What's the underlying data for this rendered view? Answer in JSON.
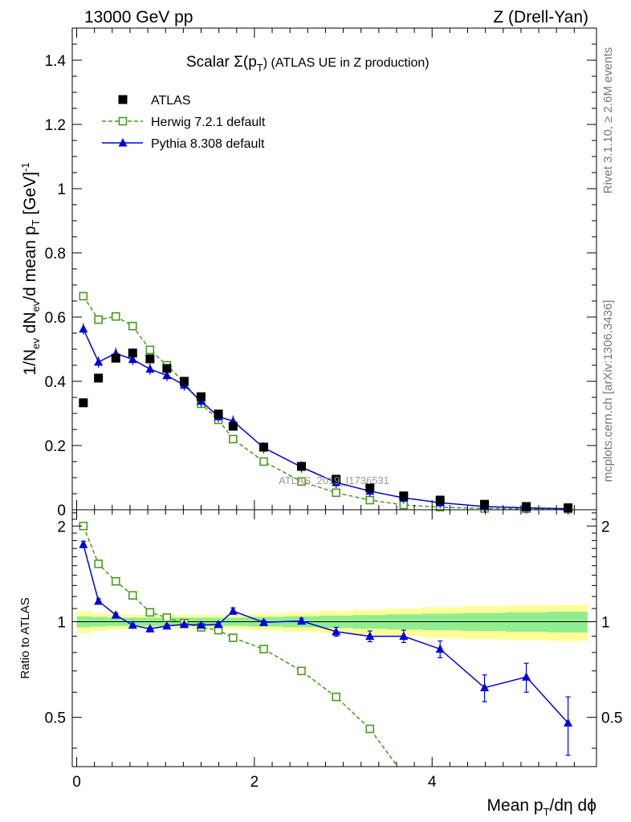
{
  "header": {
    "left": "13000 GeV pp",
    "right": "Z (Drell-Yan)"
  },
  "side_labels": {
    "rivet": "Rivet 3.1.10, ≥ 2.6M events",
    "mcplots": "mcplots.cern.ch [arXiv:1306.3436]"
  },
  "chart_data": [
    {
      "type": "line",
      "panel": "main",
      "title_main": "Scalar Σ(p",
      "title_sub": "T",
      "title_rest": ") (ATLAS UE in Z production)",
      "ylabel": "1/N_ev dN_ev/d mean p_T [GeV]^-1",
      "watermark": "ATLAS_2019_I1736531",
      "xlim": [
        -0.05,
        5.85
      ],
      "ylim": [
        0,
        1.5
      ],
      "yticks": [
        0,
        0.2,
        0.4,
        0.6,
        0.8,
        1,
        1.2,
        1.4
      ],
      "ytick_labels": [
        "0",
        "0.2",
        "0.4",
        "0.6",
        "0.8",
        "1",
        "1.2",
        "1.4"
      ],
      "legend_position": "top-left",
      "series": [
        {
          "name": "ATLAS",
          "style": "square-filled",
          "color": "#000000",
          "x": [
            0.075,
            0.245,
            0.44,
            0.63,
            0.825,
            1.015,
            1.21,
            1.4,
            1.595,
            1.76,
            2.105,
            2.53,
            2.92,
            3.3,
            3.68,
            4.09,
            4.59,
            5.06,
            5.53
          ],
          "y": [
            0.333,
            0.41,
            0.472,
            0.488,
            0.47,
            0.44,
            0.4,
            0.352,
            0.298,
            0.26,
            0.195,
            0.135,
            0.095,
            0.068,
            0.043,
            0.03,
            0.017,
            0.01,
            0.006
          ]
        },
        {
          "name": "Herwig 7.2.1 default",
          "style": "square-open-dashed",
          "color": "#4a9a1c",
          "x": [
            0.075,
            0.245,
            0.44,
            0.63,
            0.825,
            1.015,
            1.21,
            1.4,
            1.595,
            1.76,
            2.105,
            2.53,
            2.92,
            3.3,
            3.68,
            4.09,
            4.59,
            5.06,
            5.53
          ],
          "y": [
            0.665,
            0.592,
            0.602,
            0.572,
            0.498,
            0.45,
            0.397,
            0.33,
            0.28,
            0.22,
            0.15,
            0.088,
            0.053,
            0.03,
            0.015,
            0.008,
            0.004,
            0.003,
            0.002
          ]
        },
        {
          "name": "Pythia 8.308 default",
          "style": "triangle-filled-solid",
          "color": "#0000dd",
          "x": [
            0.075,
            0.245,
            0.44,
            0.63,
            0.825,
            1.015,
            1.21,
            1.4,
            1.595,
            1.76,
            2.105,
            2.53,
            2.92,
            3.3,
            3.68,
            4.09,
            4.59,
            5.06,
            5.53
          ],
          "y": [
            0.563,
            0.46,
            0.487,
            0.468,
            0.438,
            0.418,
            0.388,
            0.338,
            0.29,
            0.276,
            0.193,
            0.133,
            0.085,
            0.058,
            0.037,
            0.022,
            0.01,
            0.006,
            0.003
          ]
        }
      ]
    },
    {
      "type": "line",
      "panel": "ratio",
      "ylabel": "Ratio to ATLAS",
      "xlabel": "Mean p_T/dη dϕ",
      "xlim": [
        -0.05,
        5.85
      ],
      "ylim": [
        0.35,
        2.25
      ],
      "xticks": [
        0,
        2,
        4
      ],
      "xtick_labels": [
        "0",
        "2",
        "4"
      ],
      "yticks": [
        0.5,
        1,
        2
      ],
      "ytick_labels": [
        "0.5",
        "1",
        "2"
      ],
      "bands": {
        "inner_color": "#90ee90",
        "outer_color": "#ffff99",
        "x": [
          0.075,
          0.245,
          0.44,
          0.63,
          0.825,
          1.015,
          1.21,
          1.4,
          1.595,
          1.76,
          2.105,
          2.53,
          2.92,
          3.3,
          3.68,
          4.09,
          4.59,
          5.06,
          5.53
        ],
        "inner": [
          0.04,
          0.035,
          0.03,
          0.03,
          0.03,
          0.03,
          0.03,
          0.03,
          0.03,
          0.03,
          0.035,
          0.04,
          0.045,
          0.05,
          0.055,
          0.06,
          0.065,
          0.07,
          0.075
        ],
        "outer": [
          0.08,
          0.065,
          0.055,
          0.05,
          0.05,
          0.05,
          0.05,
          0.05,
          0.05,
          0.05,
          0.06,
          0.07,
          0.08,
          0.09,
          0.1,
          0.11,
          0.12,
          0.125,
          0.13
        ]
      },
      "series": [
        {
          "name": "Herwig 7.2.1 default",
          "style": "square-open-dashed",
          "color": "#4a9a1c",
          "x": [
            0.075,
            0.245,
            0.44,
            0.63,
            0.825,
            1.015,
            1.21,
            1.4,
            1.595,
            1.76,
            2.105,
            2.53,
            2.92,
            3.3,
            3.68
          ],
          "y": [
            2.0,
            1.52,
            1.34,
            1.21,
            1.07,
            1.03,
            0.99,
            0.96,
            0.94,
            0.89,
            0.82,
            0.7,
            0.58,
            0.46,
            0.33
          ]
        },
        {
          "name": "Pythia 8.308 default",
          "style": "triangle-filled-solid",
          "color": "#0000dd",
          "x": [
            0.075,
            0.245,
            0.44,
            0.63,
            0.825,
            1.015,
            1.21,
            1.4,
            1.595,
            1.76,
            2.105,
            2.53,
            2.92,
            3.3,
            3.68,
            4.09,
            4.59,
            5.06,
            5.53
          ],
          "y": [
            1.75,
            1.16,
            1.05,
            0.975,
            0.95,
            0.97,
            0.98,
            0.975,
            0.98,
            1.08,
            0.995,
            1.005,
            0.93,
            0.9,
            0.9,
            0.82,
            0.62,
            0.67,
            0.48
          ],
          "err": [
            0.04,
            0.02,
            0.015,
            0.01,
            0.01,
            0.01,
            0.01,
            0.01,
            0.015,
            0.025,
            0.015,
            0.02,
            0.03,
            0.035,
            0.04,
            0.05,
            0.06,
            0.07,
            0.1
          ]
        }
      ]
    }
  ]
}
